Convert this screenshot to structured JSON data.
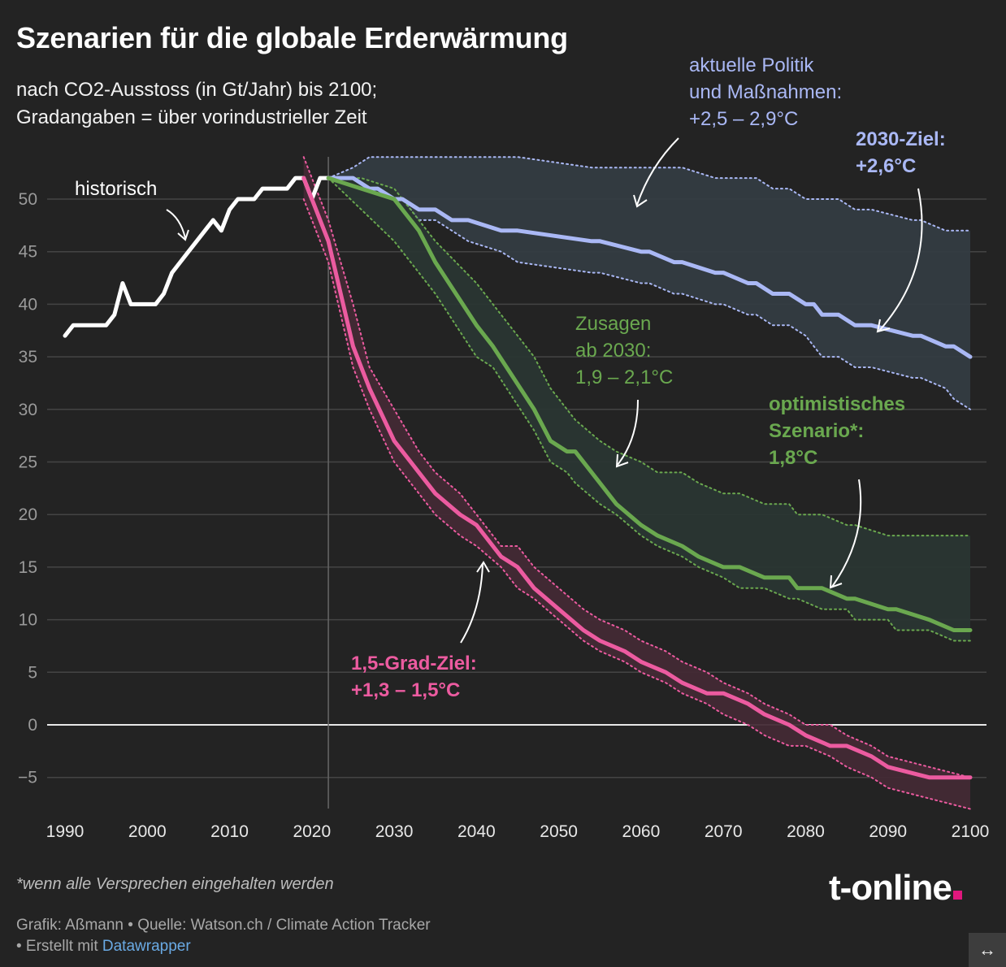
{
  "title": "Szenarien für die globale Erderwärmung",
  "subtitle_lines": [
    "nach CO2-Ausstoss (in Gt/Jahr) bis 2100;",
    "Gradangaben = über vorindustrieller Zeit"
  ],
  "annotations": {
    "historic": "historisch",
    "policy": [
      "aktuelle Politik",
      "und Maßnahmen:",
      "+2,5 – 2,9°C"
    ],
    "target2030": [
      "2030-Ziel:",
      "+2,6°C"
    ],
    "pledges": [
      "Zusagen",
      "ab 2030:",
      "1,9 – 2,1°C"
    ],
    "optimistic": [
      "optimistisches",
      "Szenario*:",
      "1,8°C"
    ],
    "paris": [
      "1,5-Grad-Ziel:",
      "+1,3 – 1,5°C"
    ]
  },
  "footnote": "*wenn alle Versprechen eingehalten werden",
  "credits": {
    "line1": "Grafik: Aßmann • Quelle: Watson.ch / Climate Action Tracker",
    "line2_prefix": " • Erstellt mit ",
    "link": "Datawrapper"
  },
  "logo": "t-online",
  "expand_icon": "↔",
  "colors": {
    "background": "#232323",
    "historic": "#ffffff",
    "policy": "#aab8f5",
    "pledges": "#6aa84f",
    "paris": "#ec5ba0",
    "policy_band": "#343c42",
    "pledges_band": "#2a3633",
    "paris_band": "#432a35"
  },
  "chart_data": {
    "type": "line",
    "title": "Szenarien für die globale Erderwärmung",
    "xlabel": "",
    "ylabel": "CO2-Ausstoss (Gt/Jahr)",
    "xlim": [
      1990,
      2100
    ],
    "ylim": [
      -8,
      54
    ],
    "x_ticks": [
      1990,
      2000,
      2010,
      2020,
      2030,
      2040,
      2050,
      2060,
      2070,
      2080,
      2090,
      2100
    ],
    "y_ticks": [
      -5,
      0,
      5,
      10,
      15,
      20,
      25,
      30,
      35,
      40,
      45,
      50
    ],
    "grid": true,
    "reference_line_x": 2022,
    "series": [
      {
        "name": "historisch",
        "color_key": "historic",
        "x": [
          1990,
          1991,
          1992,
          1993,
          1994,
          1995,
          1996,
          1997,
          1998,
          1999,
          2000,
          2001,
          2002,
          2003,
          2004,
          2005,
          2006,
          2007,
          2008,
          2009,
          2010,
          2011,
          2012,
          2013,
          2014,
          2015,
          2016,
          2017,
          2018,
          2019,
          2020,
          2021,
          2022
        ],
        "values": [
          37,
          38,
          38,
          38,
          38,
          38,
          39,
          42,
          40,
          40,
          40,
          40,
          41,
          43,
          44,
          45,
          46,
          47,
          48,
          47,
          49,
          50,
          50,
          50,
          51,
          51,
          51,
          51,
          52,
          52,
          50,
          52,
          52
        ]
      },
      {
        "name": "aktuelle Politik und Maßnahmen (2030-Ziel)",
        "color_key": "policy",
        "x": [
          2022,
          2025,
          2027,
          2028,
          2030,
          2031,
          2033,
          2035,
          2037,
          2039,
          2043,
          2045,
          2054,
          2055,
          2060,
          2061,
          2064,
          2065,
          2069,
          2070,
          2073,
          2074,
          2076,
          2078,
          2080,
          2081,
          2082,
          2084,
          2086,
          2088,
          2093,
          2094,
          2097,
          2098,
          2100
        ],
        "values": [
          52,
          52,
          51,
          51,
          50,
          50,
          49,
          49,
          48,
          48,
          47,
          47,
          46,
          46,
          45,
          45,
          44,
          44,
          43,
          43,
          42,
          42,
          41,
          41,
          40,
          40,
          39,
          39,
          38,
          38,
          37,
          37,
          36,
          36,
          35
        ],
        "upper": [
          52,
          53,
          54,
          54,
          54,
          54,
          54,
          54,
          54,
          54,
          54,
          54,
          53,
          53,
          53,
          53,
          53,
          53,
          52,
          52,
          52,
          52,
          51,
          51,
          50,
          50,
          50,
          50,
          49,
          49,
          48,
          48,
          47,
          47,
          47
        ],
        "lower": [
          52,
          52,
          51,
          51,
          50,
          50,
          48,
          48,
          47,
          46,
          45,
          44,
          43,
          43,
          42,
          42,
          41,
          41,
          40,
          40,
          39,
          39,
          38,
          38,
          37,
          36,
          35,
          35,
          34,
          34,
          33,
          33,
          32,
          31,
          30
        ]
      },
      {
        "name": "Zusagen ab 2030",
        "color_key": "pledges",
        "x": [
          2022,
          2026,
          2030,
          2033,
          2035,
          2040,
          2042,
          2047,
          2049,
          2051,
          2052,
          2055,
          2057,
          2060,
          2062,
          2065,
          2067,
          2070,
          2072,
          2075,
          2078,
          2079,
          2082,
          2085,
          2086,
          2090,
          2091,
          2095,
          2098,
          2100
        ],
        "values": [
          52,
          51,
          50,
          47,
          44,
          38,
          36,
          30,
          27,
          26,
          26,
          23,
          21,
          19,
          18,
          17,
          16,
          15,
          15,
          14,
          14,
          13,
          13,
          12,
          12,
          11,
          11,
          10,
          9,
          9
        ],
        "upper": [
          52,
          52,
          51,
          48,
          46,
          42,
          40,
          35,
          32,
          30,
          29,
          27,
          26,
          25,
          24,
          24,
          23,
          22,
          22,
          21,
          21,
          20,
          20,
          19,
          19,
          18,
          18,
          18,
          18,
          18
        ],
        "lower": [
          52,
          49,
          46,
          43,
          41,
          35,
          34,
          28,
          25,
          24,
          23,
          21,
          20,
          18,
          17,
          16,
          15,
          14,
          13,
          13,
          12,
          12,
          11,
          11,
          10,
          10,
          9,
          9,
          8,
          8
        ]
      },
      {
        "name": "1,5-Grad-Ziel",
        "color_key": "paris",
        "x": [
          2019,
          2022,
          2025,
          2027,
          2030,
          2033,
          2035,
          2038,
          2040,
          2043,
          2045,
          2047,
          2050,
          2053,
          2055,
          2058,
          2060,
          2063,
          2065,
          2068,
          2070,
          2073,
          2075,
          2078,
          2080,
          2083,
          2085,
          2088,
          2090,
          2095,
          2100
        ],
        "values": [
          52,
          46,
          36,
          32,
          27,
          24,
          22,
          20,
          19,
          16,
          15,
          13,
          11,
          9,
          8,
          7,
          6,
          5,
          4,
          3,
          3,
          2,
          1,
          0,
          -1,
          -2,
          -2,
          -3,
          -4,
          -5,
          -5
        ],
        "upper": [
          54,
          48,
          40,
          34,
          30,
          26,
          24,
          22,
          20,
          17,
          17,
          15,
          13,
          11,
          10,
          9,
          8,
          7,
          6,
          5,
          4,
          3,
          2,
          1,
          0,
          0,
          -1,
          -2,
          -3,
          -4,
          -5
        ],
        "lower": [
          50,
          44,
          34,
          30,
          25,
          22,
          20,
          18,
          17,
          15,
          13,
          12,
          10,
          8,
          7,
          6,
          5,
          4,
          3,
          2,
          1,
          0,
          -1,
          -2,
          -2,
          -3,
          -4,
          -5,
          -6,
          -7,
          -8
        ]
      }
    ]
  }
}
